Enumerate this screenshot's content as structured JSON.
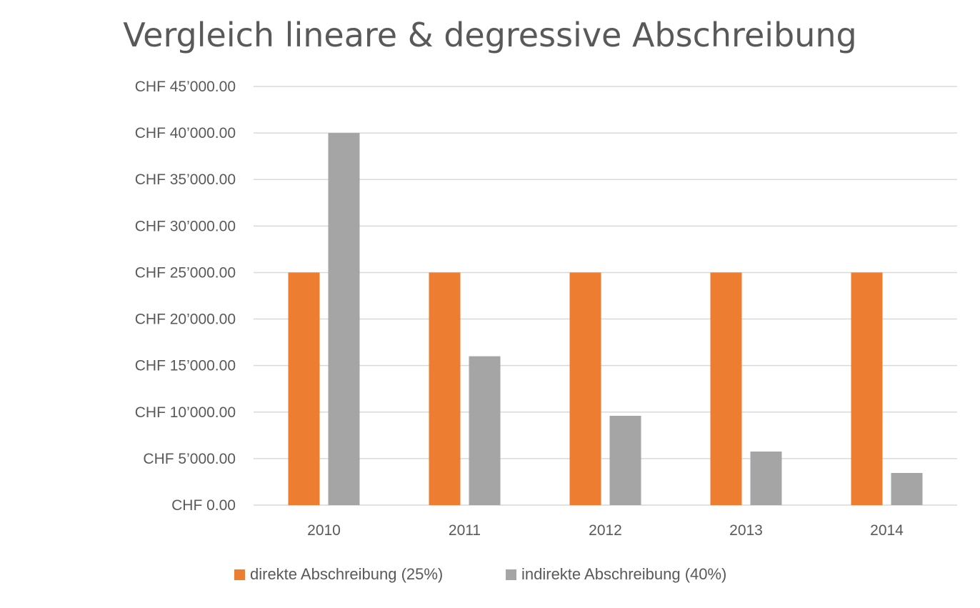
{
  "chart_data": {
    "type": "bar",
    "title": "Vergleich lineare & degressive Abschreibung",
    "categories": [
      "2010",
      "2011",
      "2012",
      "2013",
      "2014"
    ],
    "series": [
      {
        "name": "direkte Abschreibung (25%)",
        "color": "#ED7D31",
        "values": [
          25000,
          25000,
          25000,
          25000,
          25000
        ]
      },
      {
        "name": "indirekte Abschreibung (40%)",
        "color": "#A5A5A5",
        "values": [
          40000,
          16000,
          9600,
          5760,
          3456
        ]
      }
    ],
    "ylim": [
      0,
      45000
    ],
    "yticks": [
      0,
      5000,
      10000,
      15000,
      20000,
      25000,
      30000,
      35000,
      40000,
      45000
    ],
    "ytick_labels": [
      "CHF 0.00",
      "CHF 5’000.00",
      "CHF 10’000.00",
      "CHF 15’000.00",
      "CHF 20’000.00",
      "CHF 25’000.00",
      "CHF 30’000.00",
      "CHF 35’000.00",
      "CHF 40’000.00",
      "CHF 45’000.00"
    ],
    "grid": true,
    "legend": "bottom",
    "gridline_color": "#D9D9D9",
    "text_color": "#595959"
  }
}
